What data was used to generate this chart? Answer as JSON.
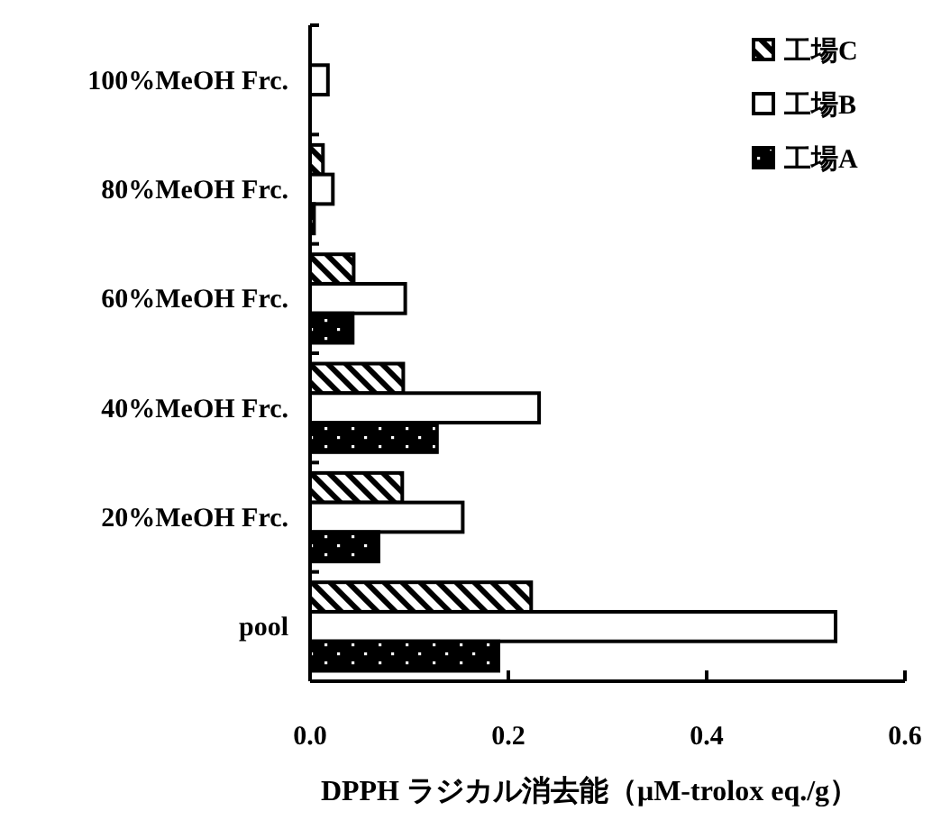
{
  "chart_data": {
    "type": "bar",
    "orientation": "horizontal",
    "categories": [
      "100%MeOH Frc.",
      "80%MeOH Frc.",
      "60%MeOH Frc.",
      "40%MeOH Frc.",
      "20%MeOH Frc.",
      "pool"
    ],
    "series": [
      {
        "name": "工場C",
        "color": "#000000",
        "values": [
          0,
          0.013,
          0.044,
          0.094,
          0.093,
          0.223
        ]
      },
      {
        "name": "工場B",
        "color": "#ffffff",
        "values": [
          0.018,
          0.023,
          0.096,
          0.231,
          0.154,
          0.53
        ]
      },
      {
        "name": "工場A",
        "color": "#000000",
        "values": [
          0,
          0.004,
          0.043,
          0.128,
          0.069,
          0.19
        ]
      }
    ],
    "xlim": [
      0,
      0.6
    ],
    "xticks": [
      {
        "value": 0,
        "label": "0.0"
      },
      0.2,
      0.4,
      0.6
    ],
    "xlabel": "DPPH ラジカル消去能（μM-trolox eq./g）",
    "grid": false,
    "legend": "top right"
  }
}
